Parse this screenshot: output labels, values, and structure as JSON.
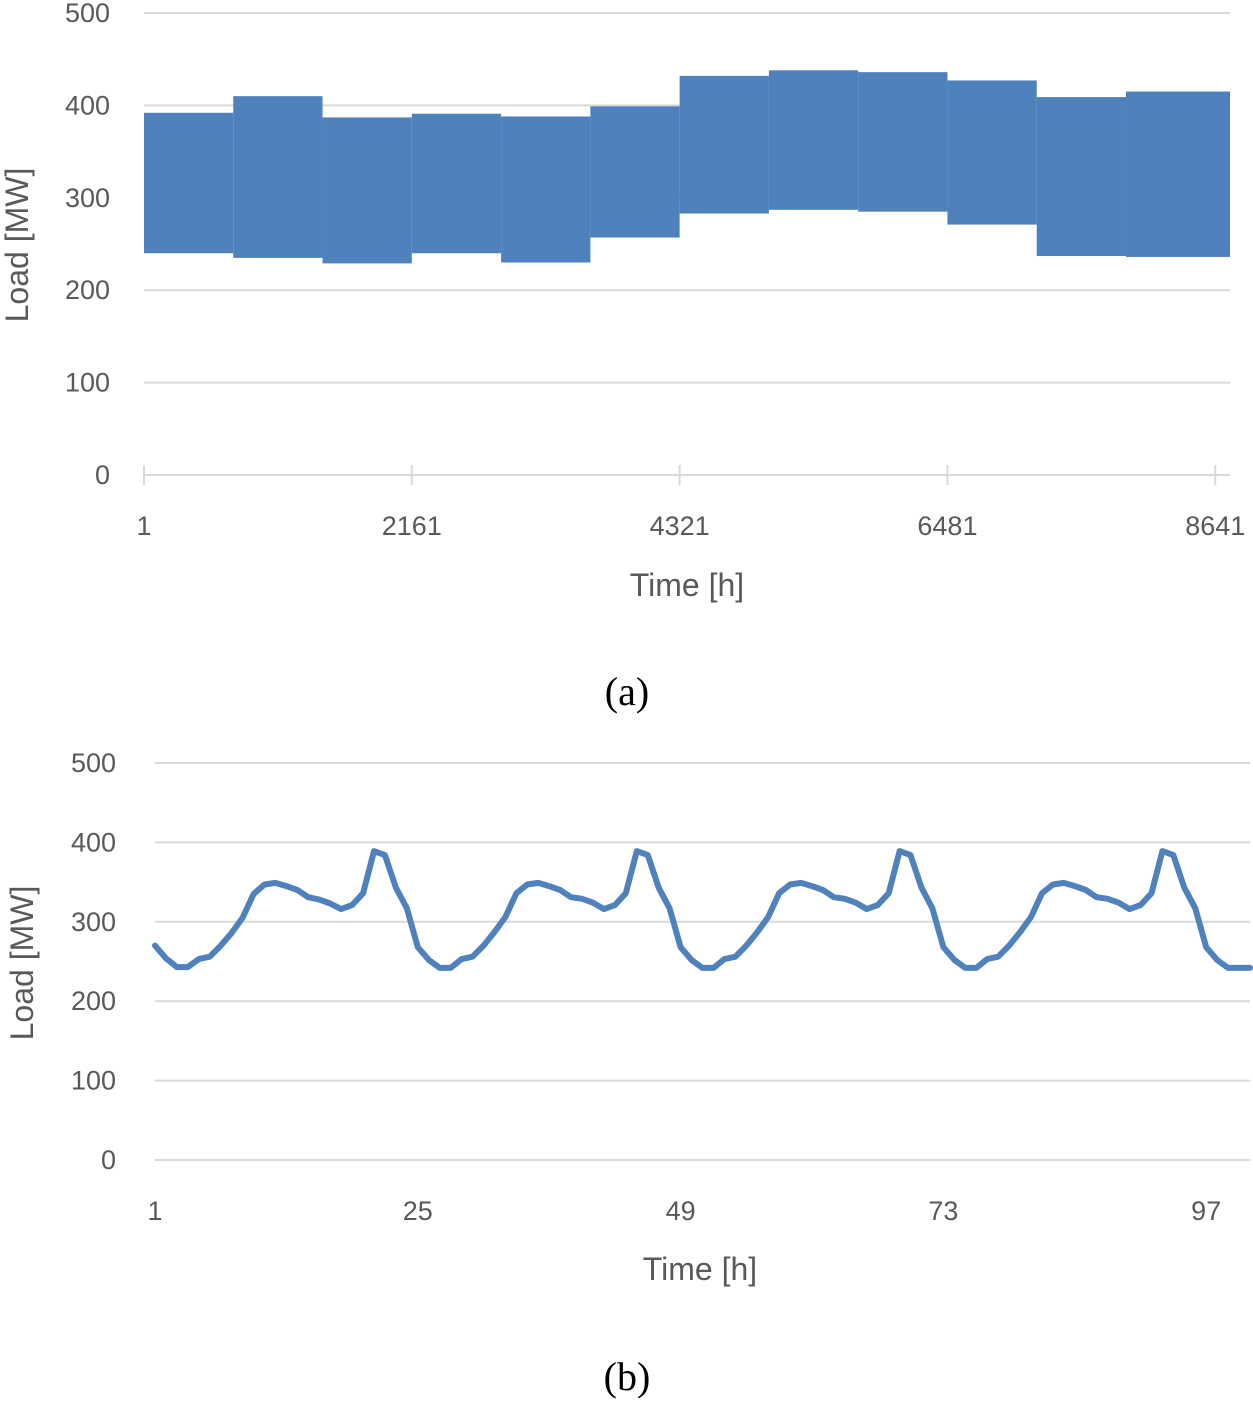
{
  "colors": {
    "series": "#4f81bd",
    "grid": "#d9d9d9",
    "text": "#595959"
  },
  "chart_data": [
    {
      "type": "area",
      "caption": "(a)",
      "xlabel": "Time [h]",
      "ylabel": "Load [MW]",
      "ylim": [
        0,
        500
      ],
      "yticks": [
        0,
        100,
        200,
        300,
        400,
        500
      ],
      "xlim": [
        1,
        8760
      ],
      "xticks": [
        1,
        2161,
        4321,
        6481,
        8641
      ],
      "grid": true,
      "series": [
        {
          "x_start": [
            1,
            721,
            1441,
            2161,
            2881,
            3601,
            4321,
            5041,
            5761,
            6481,
            7201,
            7921,
            8760
          ],
          "min": [
            240,
            235,
            229,
            240,
            230,
            257,
            283,
            287,
            285,
            271,
            237,
            236
          ],
          "max": [
            392,
            410,
            387,
            391,
            388,
            399,
            432,
            438,
            436,
            427,
            409,
            415
          ]
        }
      ]
    },
    {
      "type": "line",
      "caption": "(b)",
      "xlabel": "Time [h]",
      "ylabel": "Load [MW]",
      "ylim": [
        0,
        500
      ],
      "yticks": [
        0,
        100,
        200,
        300,
        400,
        500
      ],
      "xlim": [
        1,
        101
      ],
      "xticks": [
        1,
        25,
        49,
        73,
        97
      ],
      "grid": true,
      "series": [
        {
          "x": [
            1,
            2,
            3,
            4,
            5,
            6,
            7,
            8,
            9,
            10,
            11,
            12,
            13,
            14,
            15,
            16,
            17,
            18,
            19,
            20,
            21,
            22,
            23,
            24,
            25,
            26,
            27,
            28,
            29,
            30,
            31,
            32,
            33,
            34,
            35,
            36,
            37,
            38,
            39,
            40,
            41,
            42,
            43,
            44,
            45,
            46,
            47,
            48,
            49,
            50,
            51,
            52,
            53,
            54,
            55,
            56,
            57,
            58,
            59,
            60,
            61,
            62,
            63,
            64,
            65,
            66,
            67,
            68,
            69,
            70,
            71,
            72,
            73,
            74,
            75,
            76,
            77,
            78,
            79,
            80,
            81,
            82,
            83,
            84,
            85,
            86,
            87,
            88,
            89,
            90,
            91,
            92,
            93,
            94,
            95,
            96,
            97,
            98,
            99,
            100,
            101
          ],
          "y": [
            270,
            254,
            243,
            243,
            253,
            256,
            270,
            286,
            305,
            335,
            347,
            349,
            345,
            340,
            331,
            328,
            323,
            316,
            321,
            336,
            389,
            384,
            343,
            317,
            268,
            252,
            242,
            242,
            253,
            256,
            270,
            287,
            306,
            336,
            347,
            349,
            345,
            340,
            331,
            329,
            324,
            316,
            321,
            336,
            389,
            384,
            343,
            317,
            268,
            252,
            242,
            242,
            253,
            256,
            270,
            287,
            306,
            336,
            347,
            349,
            345,
            340,
            331,
            329,
            324,
            316,
            321,
            336,
            389,
            384,
            343,
            317,
            268,
            252,
            242,
            242,
            253,
            256,
            270,
            287,
            306,
            336,
            347,
            349,
            345,
            340,
            331,
            329,
            324,
            316,
            321,
            336,
            389,
            384,
            343,
            317,
            268,
            252,
            242,
            242,
            242
          ]
        }
      ]
    }
  ]
}
